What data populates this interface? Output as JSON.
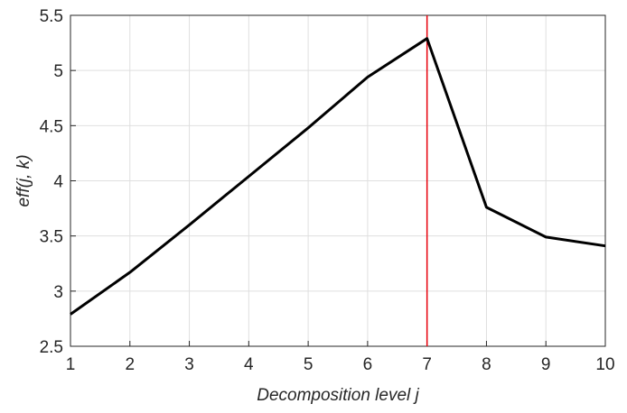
{
  "chart_data": {
    "type": "line",
    "title": "",
    "xlabel": "Decomposition level j",
    "ylabel": "eff(j, k)",
    "xlim": [
      1,
      10
    ],
    "ylim": [
      2.5,
      5.5
    ],
    "x_ticks": [
      1,
      2,
      3,
      4,
      5,
      6,
      7,
      8,
      9,
      10
    ],
    "y_ticks": [
      2.5,
      3,
      3.5,
      4,
      4.5,
      5,
      5.5
    ],
    "x_tick_labels": [
      "1",
      "2",
      "3",
      "4",
      "5",
      "6",
      "7",
      "8",
      "9",
      "10"
    ],
    "y_tick_labels": [
      "2.5",
      "3",
      "3.5",
      "4",
      "4.5",
      "5",
      "5.5"
    ],
    "grid": true,
    "series": [
      {
        "x": [
          1,
          2,
          3,
          4,
          5,
          6,
          7,
          8,
          9,
          10
        ],
        "values": [
          2.79,
          3.17,
          3.6,
          4.04,
          4.48,
          4.94,
          5.29,
          3.76,
          3.49,
          3.41
        ],
        "color": "#000000"
      }
    ],
    "vertical_line": {
      "x": 7,
      "color": "#e8000b"
    }
  }
}
